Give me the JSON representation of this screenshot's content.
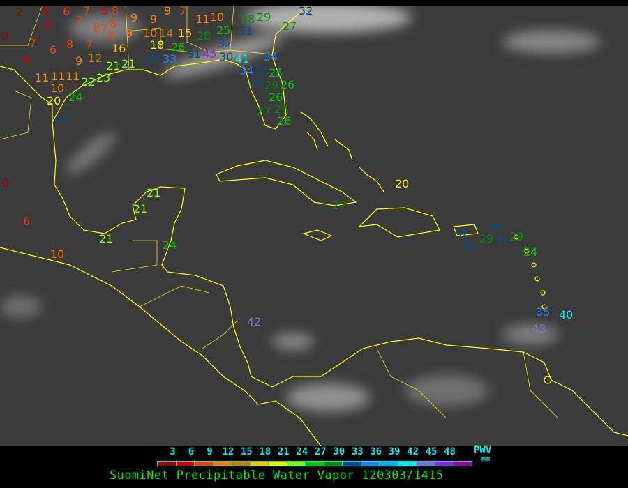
{
  "title": "SuomiNet Precipitable Water Vapor 120303/1415",
  "legend": {
    "ticks": [
      "3",
      "6",
      "9",
      "12",
      "15",
      "18",
      "21",
      "24",
      "27",
      "30",
      "33",
      "36",
      "39",
      "42",
      "45",
      "48"
    ],
    "unit_label": "PWV",
    "unit": "mm",
    "colors": [
      "#9b0000",
      "#d40000",
      "#f04000",
      "#ff8000",
      "#c88000",
      "#ffc800",
      "#f0f000",
      "#80ff00",
      "#00c800",
      "#009000",
      "#00508c",
      "#2080ff",
      "#00b0f0",
      "#00f0f0",
      "#8070d0",
      "#9020f0",
      "#a000a0"
    ]
  },
  "map": {
    "coastline_color": "#ffff00",
    "border_color": "#ffffff",
    "station_values": [
      2,
      0,
      4,
      4,
      4,
      6,
      7,
      5,
      8,
      7,
      8,
      8,
      7,
      8,
      7,
      6,
      8,
      7,
      9,
      12,
      16,
      9,
      9,
      9,
      7,
      9,
      10,
      14,
      15,
      18,
      26,
      30,
      33,
      31,
      45,
      11,
      10,
      25,
      28,
      32,
      30,
      28,
      29,
      31,
      27,
      32,
      41,
      34,
      34,
      32,
      25,
      30,
      29,
      26,
      26,
      29,
      27,
      26,
      11,
      11,
      11,
      10,
      22,
      23,
      21,
      21,
      20,
      24,
      32,
      0,
      6,
      10,
      21,
      21,
      21,
      24,
      20,
      27,
      32,
      31,
      30,
      29,
      31,
      29,
      24,
      35,
      40,
      43,
      42
    ]
  }
}
